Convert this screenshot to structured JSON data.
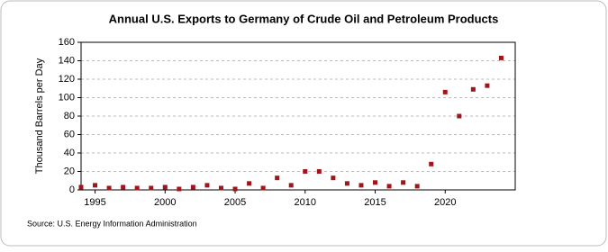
{
  "chart_data": {
    "type": "scatter",
    "title": "Annual U.S. Exports to Germany of Crude Oil and Petroleum Products",
    "y_label": "Thousand Barrels per Day",
    "source": "Source: U.S. Energy Information Administration",
    "color": "#a0141a",
    "x": [
      1994,
      1995,
      1996,
      1997,
      1998,
      1999,
      2000,
      2001,
      2002,
      2003,
      2004,
      2005,
      2006,
      2007,
      2008,
      2009,
      2010,
      2011,
      2012,
      2013,
      2014,
      2015,
      2016,
      2017,
      2018,
      2019,
      2020,
      2021,
      2022,
      2023,
      2024
    ],
    "values": [
      3,
      5,
      2,
      3,
      2,
      2,
      3,
      1,
      3,
      5,
      2,
      1,
      7,
      2,
      13,
      5,
      20,
      20,
      13,
      7,
      5,
      8,
      4,
      8,
      4,
      28,
      106,
      80,
      109,
      113,
      143
    ],
    "xlim": [
      1994,
      2025
    ],
    "xticks": [
      1995,
      2000,
      2005,
      2010,
      2015,
      2020
    ],
    "ylim": [
      0,
      160
    ],
    "yticks": [
      0,
      20,
      40,
      60,
      80,
      100,
      120,
      140,
      160
    ],
    "grid": true
  }
}
